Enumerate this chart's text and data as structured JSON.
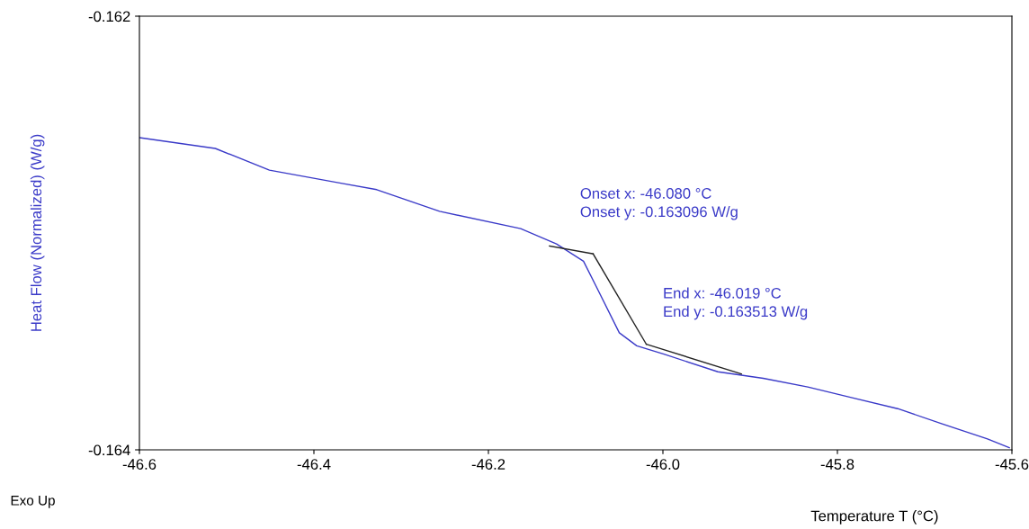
{
  "chart_data": {
    "type": "line",
    "xlabel": "Temperature T (°C)",
    "ylabel": "Heat Flow (Normalized) (W/g)",
    "xlim": [
      -46.6,
      -45.6
    ],
    "xticks": [
      -46.6,
      -46.4,
      -46.2,
      {
        "value": -46.0,
        "label": "-46.0"
      },
      -45.8,
      -45.6
    ],
    "ylim": [
      -0.164,
      -0.162
    ],
    "yticks": [
      -0.164,
      -0.162
    ],
    "grid": false,
    "legend": false,
    "marker": "none",
    "line_style": "solid",
    "series": [
      {
        "color": "#3a3ac8",
        "x": [
          -46.6,
          -46.513,
          -46.451,
          -46.369,
          -46.328,
          -46.256,
          -46.163,
          -46.122,
          -46.091,
          -46.076,
          -46.05,
          -46.03,
          -45.998,
          -45.937,
          -45.885,
          -45.834,
          -45.783,
          -45.731,
          -45.68,
          -45.628,
          -45.603
        ],
        "values": [
          -0.16256,
          -0.16261,
          -0.16271,
          -0.16277,
          -0.1628,
          -0.1629,
          -0.16298,
          -0.16305,
          -0.16313,
          -0.16325,
          -0.16346,
          -0.16352,
          -0.16356,
          -0.16364,
          -0.16367,
          -0.16371,
          -0.16376,
          -0.16381,
          -0.16388,
          -0.16395,
          -0.16399
        ]
      },
      {
        "color": "#222222",
        "x": [
          -46.13,
          -46.08
        ],
        "values": [
          -0.16306,
          -0.163096
        ]
      },
      {
        "color": "#222222",
        "x": [
          -46.08,
          -46.019
        ],
        "values": [
          -0.163096,
          -0.163513
        ]
      },
      {
        "color": "#222222",
        "x": [
          -46.019,
          -45.91
        ],
        "values": [
          -0.163513,
          -0.16365
        ]
      }
    ],
    "annotations": [
      "Onset x: -46.080 °C\nOnset y: -0.163096 W/g",
      "End x: -46.019 °C\nEnd y: -0.163513 W/g",
      "Exo Up"
    ]
  }
}
